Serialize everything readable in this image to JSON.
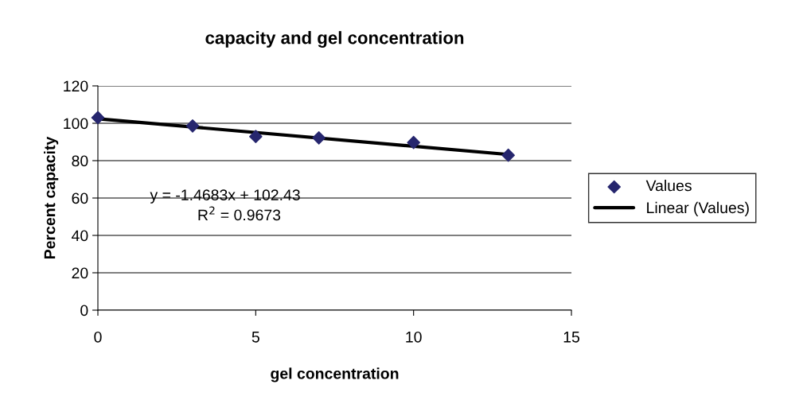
{
  "chart_data": {
    "type": "scatter",
    "title": "capacity and gel concentration",
    "xlabel": "gel concentration",
    "ylabel": "Percent capacity",
    "series": [
      {
        "name": "Values",
        "color": "#26266e",
        "marker": "diamond",
        "x": [
          0,
          3,
          5,
          7,
          10,
          13
        ],
        "values": [
          103,
          98.6,
          92.9,
          92.2,
          89.7,
          82.9
        ]
      },
      {
        "name": "Linear (Values)",
        "type": "line",
        "color": "#000000",
        "marker": "none",
        "line_style": "solid",
        "x": [
          0,
          13
        ],
        "values": [
          102.4,
          83.3
        ]
      }
    ],
    "annotations": [
      "y = -1.4683x + 102.43",
      "R$^{2}$ = 0.9673"
    ],
    "xlim": [
      0,
      15
    ],
    "xticks": [
      0,
      5,
      10,
      15
    ],
    "ylim": [
      0,
      120
    ],
    "yticks": [
      0,
      20,
      40,
      60,
      80,
      100,
      120
    ],
    "grid": "y",
    "legend": "right"
  }
}
